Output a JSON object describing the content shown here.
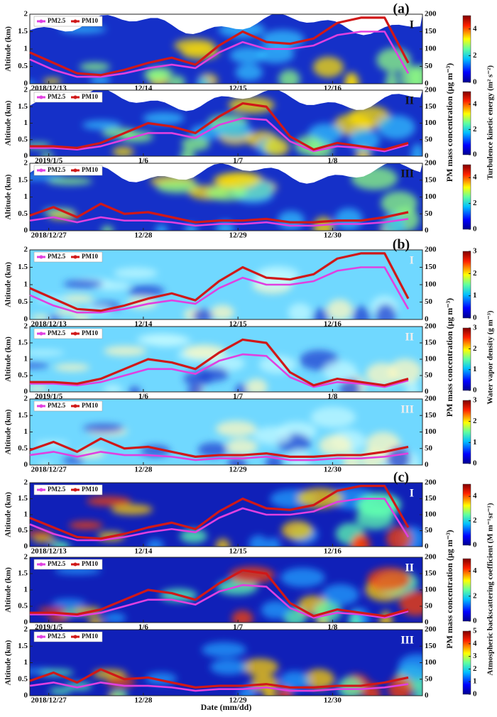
{
  "chart_data": [
    {
      "type": "line",
      "group_label": "(a)",
      "panel": "I",
      "ylabel": "Altitude (km)",
      "ylim": [
        0,
        2
      ],
      "yticks": [
        0,
        0.5,
        1,
        1.5,
        2
      ],
      "y2lim": [
        0,
        200
      ],
      "y2ticks": [
        0,
        50,
        100,
        150,
        200
      ],
      "y2label": "PM mass concentration (μg m⁻³)",
      "colorbar_label": "Turbulence kinetic energy (m² s⁻²)",
      "colorbar_lim": [
        0,
        5
      ],
      "colorbar_ticks": [
        0,
        2,
        4
      ],
      "xlim": [
        -0.2,
        3.95
      ],
      "xticks": [
        {
          "value": 0,
          "label": "2018/12/13"
        },
        {
          "value": 1,
          "label": "12/14"
        },
        {
          "value": 2,
          "label": "12/15"
        },
        {
          "value": 3,
          "label": "12/16"
        }
      ],
      "x": [
        -0.2,
        0.05,
        0.3,
        0.55,
        0.8,
        1.05,
        1.3,
        1.55,
        1.8,
        2.05,
        2.3,
        2.55,
        2.8,
        3.05,
        3.3,
        3.55,
        3.8
      ],
      "series": [
        {
          "name": "PM2.5",
          "color": "#e040e0",
          "axis": "y2",
          "values": [
            70,
            40,
            20,
            20,
            30,
            45,
            55,
            45,
            90,
            120,
            100,
            100,
            110,
            140,
            150,
            150,
            30
          ]
        },
        {
          "name": "PM10",
          "color": "#d01818",
          "axis": "y2",
          "values": [
            90,
            60,
            30,
            25,
            40,
            60,
            75,
            55,
            110,
            150,
            120,
            115,
            130,
            175,
            190,
            190,
            60
          ]
        }
      ]
    },
    {
      "type": "line",
      "panel": "II",
      "ylabel": "Altitude (km)",
      "ylim": [
        0,
        2
      ],
      "yticks": [
        0,
        0.5,
        1,
        1.5,
        2
      ],
      "y2lim": [
        0,
        200
      ],
      "y2ticks": [
        0,
        50,
        100,
        150,
        200
      ],
      "colorbar_lim": [
        0,
        5
      ],
      "colorbar_ticks": [
        0,
        2,
        4
      ],
      "xlim": [
        -0.2,
        3.95
      ],
      "xticks": [
        {
          "value": 0,
          "label": "2019/1/5"
        },
        {
          "value": 1,
          "label": "1/6"
        },
        {
          "value": 2,
          "label": "1/7"
        },
        {
          "value": 3,
          "label": "1/8"
        }
      ],
      "x": [
        -0.2,
        0.05,
        0.3,
        0.55,
        0.8,
        1.05,
        1.3,
        1.55,
        1.8,
        2.05,
        2.3,
        2.55,
        2.8,
        3.05,
        3.3,
        3.55,
        3.8
      ],
      "series": [
        {
          "name": "PM2.5",
          "color": "#e040e0",
          "axis": "y2",
          "values": [
            25,
            25,
            20,
            30,
            50,
            70,
            70,
            55,
            95,
            115,
            110,
            45,
            15,
            30,
            25,
            15,
            35
          ]
        },
        {
          "name": "PM10",
          "color": "#d01818",
          "axis": "y2",
          "values": [
            30,
            30,
            25,
            40,
            70,
            100,
            90,
            70,
            120,
            160,
            150,
            60,
            20,
            40,
            30,
            20,
            40
          ]
        }
      ]
    },
    {
      "type": "line",
      "panel": "III",
      "ylabel": "Altitude (km)",
      "ylim": [
        0,
        2
      ],
      "yticks": [
        0,
        0.5,
        1,
        1.5,
        2
      ],
      "y2lim": [
        0,
        200
      ],
      "y2ticks": [
        0,
        50,
        100,
        150,
        200
      ],
      "colorbar_lim": [
        0,
        5
      ],
      "colorbar_ticks": [
        0,
        2,
        4
      ],
      "xlim": [
        -0.2,
        3.95
      ],
      "xticks": [
        {
          "value": 0,
          "label": "2018/12/27"
        },
        {
          "value": 1,
          "label": "12/28"
        },
        {
          "value": 2,
          "label": "12/29"
        },
        {
          "value": 3,
          "label": "12/30"
        }
      ],
      "x": [
        -0.2,
        0.05,
        0.3,
        0.55,
        0.8,
        1.05,
        1.3,
        1.55,
        1.8,
        2.05,
        2.3,
        2.55,
        2.8,
        3.05,
        3.3,
        3.55,
        3.8
      ],
      "series": [
        {
          "name": "PM2.5",
          "color": "#e040e0",
          "axis": "y2",
          "values": [
            30,
            40,
            25,
            40,
            30,
            30,
            25,
            15,
            20,
            20,
            25,
            15,
            15,
            20,
            20,
            25,
            35
          ]
        },
        {
          "name": "PM10",
          "color": "#d01818",
          "axis": "y2",
          "values": [
            45,
            70,
            40,
            80,
            50,
            55,
            40,
            25,
            30,
            30,
            35,
            25,
            25,
            30,
            30,
            40,
            55
          ]
        }
      ]
    },
    {
      "type": "line",
      "group_label": "(b)",
      "panel": "I",
      "ylabel": "Altitude (km)",
      "ylim": [
        0,
        2
      ],
      "yticks": [
        0,
        0.5,
        1,
        1.5,
        2
      ],
      "y2lim": [
        0,
        200
      ],
      "y2ticks": [
        0,
        50,
        100,
        150,
        200
      ],
      "y2label": "PM mass concentration (μg m⁻³)",
      "colorbar_label": "Water vapor density (g m⁻³)",
      "colorbar_lim": [
        0,
        3
      ],
      "colorbar_ticks": [
        0,
        1,
        2,
        3
      ],
      "xlim": [
        -0.2,
        3.95
      ],
      "xticks": [
        {
          "value": 0,
          "label": "2018/12/13"
        },
        {
          "value": 1,
          "label": "12/14"
        },
        {
          "value": 2,
          "label": "12/15"
        },
        {
          "value": 3,
          "label": "12/16"
        }
      ],
      "x": [
        -0.2,
        0.05,
        0.3,
        0.55,
        0.8,
        1.05,
        1.3,
        1.55,
        1.8,
        2.05,
        2.3,
        2.55,
        2.8,
        3.05,
        3.3,
        3.55,
        3.8
      ],
      "series": [
        {
          "name": "PM2.5",
          "color": "#e040e0",
          "axis": "y2",
          "values": [
            70,
            40,
            20,
            20,
            30,
            45,
            55,
            45,
            90,
            120,
            100,
            100,
            110,
            140,
            150,
            150,
            30
          ]
        },
        {
          "name": "PM10",
          "color": "#d01818",
          "axis": "y2",
          "values": [
            90,
            60,
            30,
            25,
            40,
            60,
            75,
            55,
            110,
            150,
            120,
            115,
            130,
            175,
            190,
            190,
            60
          ]
        }
      ]
    },
    {
      "type": "line",
      "panel": "II",
      "ylabel": "Altitude (km)",
      "ylim": [
        0,
        2
      ],
      "yticks": [
        0,
        0.5,
        1,
        1.5,
        2
      ],
      "y2lim": [
        0,
        200
      ],
      "y2ticks": [
        0,
        50,
        100,
        150,
        200
      ],
      "colorbar_lim": [
        0,
        3
      ],
      "colorbar_ticks": [
        0,
        1,
        2,
        3
      ],
      "xlim": [
        -0.2,
        3.95
      ],
      "xticks": [
        {
          "value": 0,
          "label": "2019/1/5"
        },
        {
          "value": 1,
          "label": "1/6"
        },
        {
          "value": 2,
          "label": "1/7"
        },
        {
          "value": 3,
          "label": "1/8"
        }
      ],
      "x": [
        -0.2,
        0.05,
        0.3,
        0.55,
        0.8,
        1.05,
        1.3,
        1.55,
        1.8,
        2.05,
        2.3,
        2.55,
        2.8,
        3.05,
        3.3,
        3.55,
        3.8
      ],
      "series": [
        {
          "name": "PM2.5",
          "color": "#e040e0",
          "axis": "y2",
          "values": [
            25,
            25,
            20,
            30,
            50,
            70,
            70,
            55,
            95,
            115,
            110,
            45,
            15,
            30,
            25,
            15,
            35
          ]
        },
        {
          "name": "PM10",
          "color": "#d01818",
          "axis": "y2",
          "values": [
            30,
            30,
            25,
            40,
            70,
            100,
            90,
            70,
            120,
            160,
            150,
            60,
            20,
            40,
            30,
            20,
            40
          ]
        }
      ]
    },
    {
      "type": "line",
      "panel": "III",
      "ylabel": "Altitude (km)",
      "ylim": [
        0,
        2
      ],
      "yticks": [
        0,
        0.5,
        1,
        1.5,
        2
      ],
      "y2lim": [
        0,
        200
      ],
      "y2ticks": [
        0,
        50,
        100,
        150,
        200
      ],
      "colorbar_lim": [
        0,
        3
      ],
      "colorbar_ticks": [
        0,
        1,
        2,
        3
      ],
      "xlim": [
        -0.2,
        3.95
      ],
      "xticks": [
        {
          "value": 0,
          "label": "2018/12/27"
        },
        {
          "value": 1,
          "label": "12/28"
        },
        {
          "value": 2,
          "label": "12/29"
        },
        {
          "value": 3,
          "label": "12/30"
        }
      ],
      "x": [
        -0.2,
        0.05,
        0.3,
        0.55,
        0.8,
        1.05,
        1.3,
        1.55,
        1.8,
        2.05,
        2.3,
        2.55,
        2.8,
        3.05,
        3.3,
        3.55,
        3.8
      ],
      "series": [
        {
          "name": "PM2.5",
          "color": "#e040e0",
          "axis": "y2",
          "values": [
            30,
            40,
            25,
            40,
            30,
            30,
            25,
            15,
            20,
            20,
            25,
            15,
            15,
            20,
            20,
            25,
            35
          ]
        },
        {
          "name": "PM10",
          "color": "#d01818",
          "axis": "y2",
          "values": [
            45,
            70,
            40,
            80,
            50,
            55,
            40,
            25,
            30,
            30,
            35,
            25,
            25,
            30,
            30,
            40,
            55
          ]
        }
      ]
    },
    {
      "type": "line",
      "group_label": "(c)",
      "panel": "I",
      "ylabel": "Altitude (km)",
      "ylim": [
        0,
        2
      ],
      "yticks": [
        0,
        0.5,
        1,
        1.5,
        2
      ],
      "y2lim": [
        0,
        200
      ],
      "y2ticks": [
        0,
        50,
        100,
        150,
        200
      ],
      "y2label": "PM mass concentration (μg m⁻³)",
      "colorbar_label": "Atmospheric backscattering coefficient (M m⁻¹sr⁻¹)",
      "colorbar_lim": [
        0,
        5
      ],
      "colorbar_ticks": [
        0,
        2,
        4
      ],
      "xlim": [
        -0.2,
        3.95
      ],
      "xticks": [
        {
          "value": 0,
          "label": "2018/12/13"
        },
        {
          "value": 1,
          "label": "12/14"
        },
        {
          "value": 2,
          "label": "12/15"
        },
        {
          "value": 3,
          "label": "12/16"
        }
      ],
      "x": [
        -0.2,
        0.05,
        0.3,
        0.55,
        0.8,
        1.05,
        1.3,
        1.55,
        1.8,
        2.05,
        2.3,
        2.55,
        2.8,
        3.05,
        3.3,
        3.55,
        3.8
      ],
      "series": [
        {
          "name": "PM2.5",
          "color": "#e040e0",
          "axis": "y2",
          "values": [
            70,
            40,
            20,
            20,
            30,
            45,
            55,
            45,
            90,
            120,
            100,
            100,
            110,
            140,
            150,
            150,
            30
          ]
        },
        {
          "name": "PM10",
          "color": "#d01818",
          "axis": "y2",
          "values": [
            90,
            60,
            30,
            25,
            40,
            60,
            75,
            55,
            110,
            150,
            120,
            115,
            130,
            175,
            190,
            190,
            60
          ]
        }
      ]
    },
    {
      "type": "line",
      "panel": "II",
      "ylabel": "Altitude (km)",
      "ylim": [
        0,
        2
      ],
      "yticks": [
        0,
        0.5,
        1,
        1.5,
        2
      ],
      "y2lim": [
        0,
        200
      ],
      "y2ticks": [
        0,
        50,
        100,
        150,
        200
      ],
      "colorbar_lim": [
        0,
        5
      ],
      "colorbar_ticks": [
        0,
        2,
        4
      ],
      "xlim": [
        -0.2,
        3.95
      ],
      "xticks": [
        {
          "value": 0,
          "label": "2019/1/5"
        },
        {
          "value": 1,
          "label": "1/6"
        },
        {
          "value": 2,
          "label": "1/7"
        },
        {
          "value": 3,
          "label": "1/8"
        }
      ],
      "x": [
        -0.2,
        0.05,
        0.3,
        0.55,
        0.8,
        1.05,
        1.3,
        1.55,
        1.8,
        2.05,
        2.3,
        2.55,
        2.8,
        3.05,
        3.3,
        3.55,
        3.8
      ],
      "series": [
        {
          "name": "PM2.5",
          "color": "#e040e0",
          "axis": "y2",
          "values": [
            25,
            25,
            20,
            30,
            50,
            70,
            70,
            55,
            95,
            115,
            110,
            45,
            15,
            30,
            25,
            15,
            35
          ]
        },
        {
          "name": "PM10",
          "color": "#d01818",
          "axis": "y2",
          "values": [
            30,
            30,
            25,
            40,
            70,
            100,
            90,
            70,
            120,
            160,
            150,
            60,
            20,
            40,
            30,
            20,
            40
          ]
        }
      ]
    },
    {
      "type": "line",
      "panel": "III",
      "ylabel": "Altitude (km)",
      "ylim": [
        0,
        2
      ],
      "yticks": [
        0,
        0.5,
        1,
        1.5,
        2
      ],
      "y2lim": [
        0,
        200
      ],
      "y2ticks": [
        0,
        50,
        100,
        150,
        200
      ],
      "colorbar_lim": [
        0,
        5
      ],
      "colorbar_ticks": [
        0,
        1,
        2,
        3,
        4,
        5
      ],
      "xlim": [
        -0.2,
        3.95
      ],
      "xticks": [
        {
          "value": 0,
          "label": "2018/12/27"
        },
        {
          "value": 1,
          "label": "12/28"
        },
        {
          "value": 2,
          "label": "12/29"
        },
        {
          "value": 3,
          "label": "12/30"
        }
      ],
      "x": [
        -0.2,
        0.05,
        0.3,
        0.55,
        0.8,
        1.05,
        1.3,
        1.55,
        1.8,
        2.05,
        2.3,
        2.55,
        2.8,
        3.05,
        3.3,
        3.55,
        3.8
      ],
      "xlabel": "Date (mm/dd)",
      "series": [
        {
          "name": "PM2.5",
          "color": "#e040e0",
          "axis": "y2",
          "values": [
            30,
            40,
            25,
            40,
            30,
            30,
            25,
            15,
            20,
            20,
            25,
            15,
            15,
            20,
            20,
            25,
            35
          ]
        },
        {
          "name": "PM10",
          "color": "#d01818",
          "axis": "y2",
          "values": [
            45,
            70,
            40,
            80,
            50,
            55,
            40,
            25,
            30,
            30,
            35,
            25,
            25,
            30,
            30,
            40,
            55
          ]
        }
      ]
    }
  ]
}
